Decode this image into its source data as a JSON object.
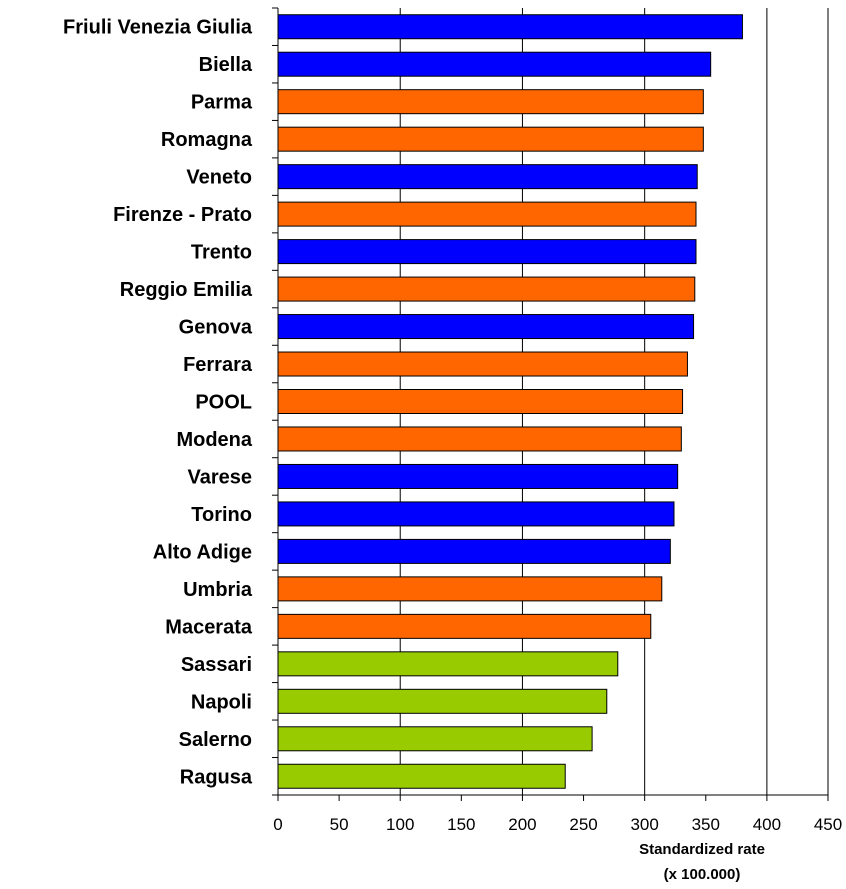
{
  "chart_data": {
    "type": "bar",
    "orientation": "horizontal",
    "categories": [
      "Friuli Venezia Giulia",
      "Biella",
      "Parma",
      "Romagna",
      "Veneto",
      "Firenze - Prato",
      "Trento",
      "Reggio Emilia",
      "Genova",
      "Ferrara",
      "POOL",
      "Modena",
      "Varese",
      "Torino",
      "Alto Adige",
      "Umbria",
      "Macerata",
      "Sassari",
      "Napoli",
      "Salerno",
      "Ragusa"
    ],
    "values": [
      380,
      354,
      348,
      348,
      343,
      342,
      342,
      341,
      340,
      335,
      331,
      330,
      327,
      324,
      321,
      314,
      305,
      278,
      269,
      257,
      235
    ],
    "bar_colors": [
      "#0000ff",
      "#0000ff",
      "#ff6600",
      "#ff6600",
      "#0000ff",
      "#ff6600",
      "#0000ff",
      "#ff6600",
      "#0000ff",
      "#ff6600",
      "#ff6600",
      "#ff6600",
      "#0000ff",
      "#0000ff",
      "#0000ff",
      "#ff6600",
      "#ff6600",
      "#99cc00",
      "#99cc00",
      "#99cc00",
      "#99cc00"
    ],
    "xlim": [
      0,
      450
    ],
    "xticks": [
      "0",
      "50",
      "100",
      "150",
      "200",
      "250",
      "300",
      "350",
      "400",
      "450"
    ],
    "xlabel_line1": "Standardized rate",
    "xlabel_line2": "(x 100.000)",
    "grid": "vertical gridlines every 100",
    "legend": "none"
  }
}
